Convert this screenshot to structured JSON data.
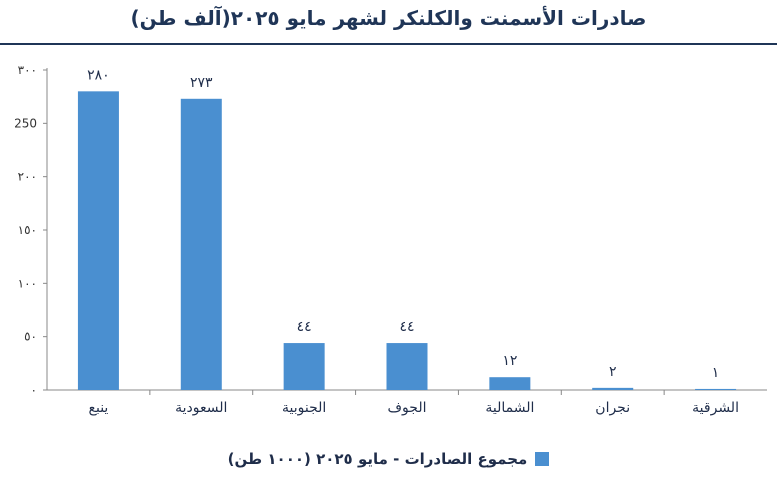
{
  "chart_data": {
    "type": "bar",
    "title": "صادرات الأسمنت والكلنكر لشهر مايو ٢٠٢٥(آلف طن)",
    "categories": [
      "ينبع",
      "السعودية",
      "الجنوبية",
      "الجوف",
      "الشمالية",
      "نجران",
      "الشرقية"
    ],
    "series": [
      {
        "name": "مجموع الصادرات - مايو ٢٠٢٥ (١٠٠٠ طن)",
        "values": [
          280,
          273,
          44,
          44,
          12,
          2,
          1
        ]
      }
    ],
    "value_labels": [
      "٢٨٠",
      "٢٧٣",
      "٤٤",
      "٤٤",
      "١٢",
      "٢",
      "١"
    ],
    "yticks": [
      0,
      50,
      100,
      150,
      200,
      250,
      300
    ],
    "ytick_labels": [
      "٠",
      "٥٠",
      "١٠٠",
      "١٥٠",
      "٢٠٠",
      "250",
      "٣٠٠"
    ],
    "ylim": [
      0,
      300
    ],
    "grid": false,
    "legend_position": "bottom",
    "bar_color": "#4a8fd0"
  }
}
